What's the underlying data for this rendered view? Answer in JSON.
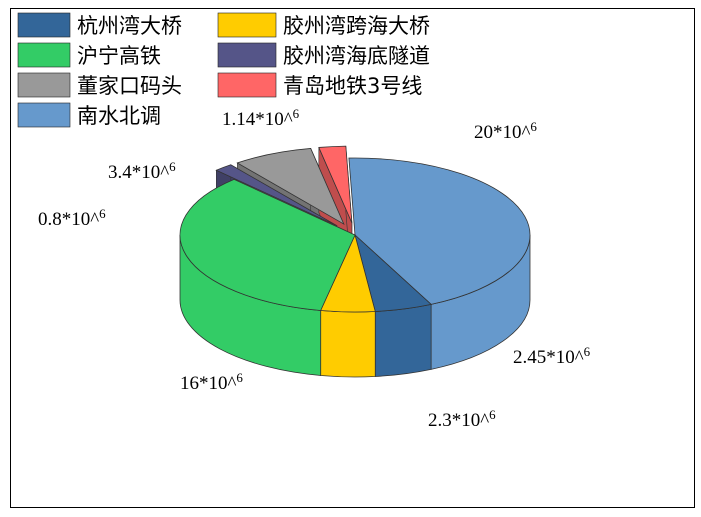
{
  "chart_data": {
    "type": "pie",
    "title": "",
    "legend_position": "top-left",
    "series": [
      {
        "name": "南水北调",
        "value": 20,
        "label": "20*10^6",
        "color": "#6699cc"
      },
      {
        "name": "杭州湾大桥",
        "value": 2.45,
        "label": "2.45*10^6",
        "color": "#336699"
      },
      {
        "name": "胶州湾跨海大桥",
        "value": 2.3,
        "label": "2.3*10^6",
        "color": "#ffcc00"
      },
      {
        "name": "沪宁高铁",
        "value": 16,
        "label": "16*10^6",
        "color": "#33cc66"
      },
      {
        "name": "胶州湾海底隧道",
        "value": 0.8,
        "label": "0.8*10^6",
        "color": "#555588"
      },
      {
        "name": "董家口码头",
        "value": 3.4,
        "label": "3.4*10^6",
        "color": "#999999"
      },
      {
        "name": "青岛地铁3号线",
        "value": 1.14,
        "label": "1.14*10^6",
        "color": "#ff6666"
      }
    ],
    "legend_order": [
      "杭州湾大桥",
      "胶州湾跨海大桥",
      "沪宁高铁",
      "胶州湾海底隧道",
      "董家口码头",
      "青岛地铁3号线",
      "南水北调"
    ]
  }
}
